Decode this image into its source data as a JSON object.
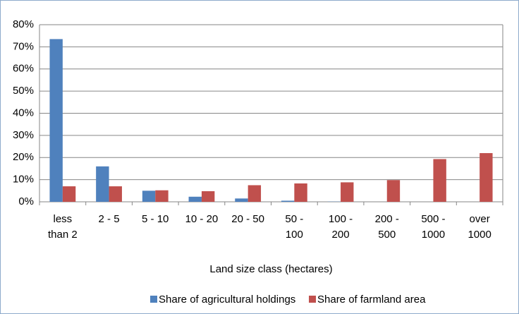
{
  "chart_data": {
    "type": "bar",
    "x_label": "Land size class (hectares)",
    "categories": [
      "less than 2",
      "2 - 5",
      "5 - 10",
      "10 - 20",
      "20 - 50",
      "50 - 100",
      "100 - 200",
      "200 - 500",
      "500 - 1000",
      "over 1000"
    ],
    "series": [
      {
        "name": "Share of agricultural holdings",
        "color": "#4f81bd",
        "values": [
          73.5,
          16,
          5,
          2.3,
          1.5,
          0.5,
          0.1,
          0,
          0,
          0
        ]
      },
      {
        "name": "Share of farmland area",
        "color": "#c0504d",
        "values": [
          7,
          7,
          5.2,
          4.8,
          7.5,
          8.3,
          8.8,
          9.8,
          19.3,
          22
        ]
      }
    ],
    "ylim": [
      0,
      80
    ],
    "yticks": [
      {
        "value": 0,
        "label": "0%"
      },
      {
        "value": 10,
        "label": "10%"
      },
      {
        "value": 20,
        "label": "20%"
      },
      {
        "value": 30,
        "label": "30%"
      },
      {
        "value": 40,
        "label": "40%"
      },
      {
        "value": 50,
        "label": "50%"
      },
      {
        "value": 60,
        "label": "60%"
      },
      {
        "value": 70,
        "label": "70%"
      },
      {
        "value": 80,
        "label": "80%"
      }
    ],
    "grid": true,
    "legend": "bottom"
  }
}
